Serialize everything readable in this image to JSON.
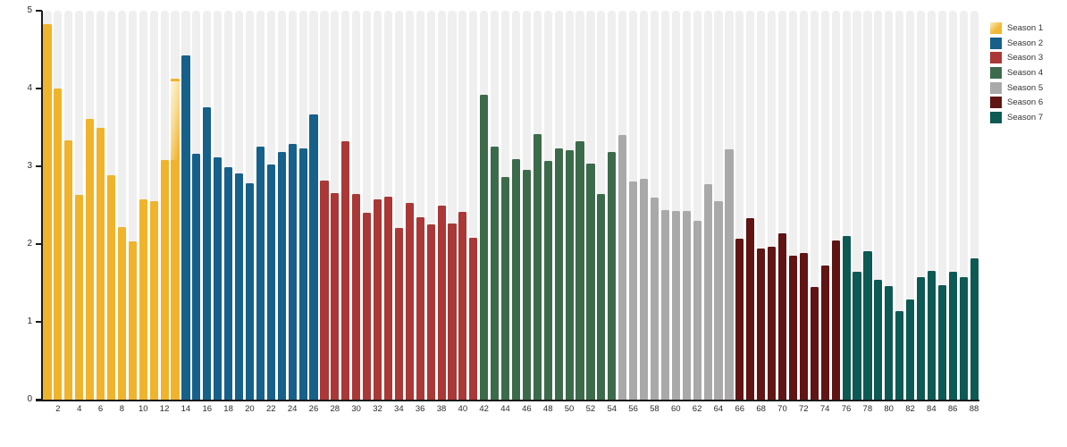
{
  "figure": {
    "background": "#ffffff",
    "title": ""
  },
  "axis": {
    "color": "#1a1a1a",
    "label_color": "#2b2b2b",
    "column_bg_color": "#efefef"
  },
  "chart_data": {
    "type": "bar",
    "title": "",
    "xlabel": "",
    "ylabel": "",
    "ylim": [
      0,
      5
    ],
    "yticks": [
      "0",
      "1",
      "2",
      "3",
      "4",
      "5"
    ],
    "xticks": [
      2,
      4,
      6,
      8,
      10,
      12,
      14,
      16,
      18,
      20,
      22,
      24,
      26,
      28,
      30,
      32,
      34,
      36,
      38,
      40,
      42,
      44,
      46,
      48,
      50,
      52,
      54,
      56,
      58,
      60,
      62,
      64,
      66,
      68,
      70,
      72,
      74,
      76,
      78,
      80,
      82,
      84,
      86,
      88
    ],
    "grid": "striped full-height column behind every bar, no horizontal gridlines",
    "legend_position": "top-right",
    "series": [
      {
        "name": "Season 1",
        "color": "#f0b32c",
        "episode_range": [
          1,
          13
        ],
        "values": [
          4.83,
          4.0,
          3.33,
          2.63,
          3.61,
          3.49,
          2.89,
          2.22,
          2.04,
          2.57,
          2.55,
          3.08,
          4.13
        ]
      },
      {
        "name": "Season 2",
        "color": "#16608a",
        "episode_range": [
          14,
          26
        ],
        "values": [
          4.43,
          3.16,
          3.76,
          3.11,
          2.99,
          2.91,
          2.78,
          3.25,
          3.02,
          3.18,
          3.29,
          3.23,
          3.67
        ]
      },
      {
        "name": "Season 3",
        "color": "#a93836",
        "episode_range": [
          27,
          41
        ],
        "values": [
          2.82,
          2.66,
          3.32,
          2.64,
          2.4,
          2.57,
          2.61,
          2.21,
          2.53,
          2.34,
          2.25,
          2.5,
          2.26,
          2.41,
          2.08
        ]
      },
      {
        "name": "Season 4",
        "color": "#3c6b4b",
        "episode_range": [
          42,
          54
        ],
        "values": [
          3.92,
          3.25,
          2.86,
          3.09,
          2.95,
          3.41,
          3.07,
          3.23,
          3.21,
          3.32,
          3.03,
          2.64,
          3.18
        ]
      },
      {
        "name": "Season 5",
        "color": "#a9a9a9",
        "episode_range": [
          55,
          65
        ],
        "values": [
          3.4,
          2.81,
          2.84,
          2.6,
          2.44,
          2.42,
          2.43,
          2.3,
          2.77,
          2.55,
          3.22
        ]
      },
      {
        "name": "Season 6",
        "color": "#601414",
        "episode_range": [
          66,
          75
        ],
        "values": [
          2.07,
          2.33,
          1.94,
          1.97,
          2.14,
          1.85,
          1.89,
          1.45,
          1.72,
          2.05
        ]
      },
      {
        "name": "Season 7",
        "color": "#0d5954",
        "episode_range": [
          76,
          88
        ],
        "values": [
          2.1,
          1.64,
          1.91,
          1.54,
          1.46,
          1.14,
          1.29,
          1.58,
          1.66,
          1.47,
          1.64,
          1.57,
          1.82
        ]
      }
    ],
    "special_bar": {
      "episode": 13,
      "style": "faded-gradient-segment",
      "fade_from": 3.08,
      "fade_to": 4.09
    },
    "legend": {
      "entries": [
        {
          "label": "Season 1",
          "color": "#f0b32c",
          "swatch_gradient": "linear-gradient(135deg,#faecc6 0%,#f2bb3a 55%,#f0b32c 100%)"
        },
        {
          "label": "Season 2",
          "color": "#16608a"
        },
        {
          "label": "Season 3",
          "color": "#a93836"
        },
        {
          "label": "Season 4",
          "color": "#3c6b4b"
        },
        {
          "label": "Season 5",
          "color": "#a9a9a9"
        },
        {
          "label": "Season 6",
          "color": "#601414"
        },
        {
          "label": "Season 7",
          "color": "#0d5954"
        }
      ]
    }
  }
}
